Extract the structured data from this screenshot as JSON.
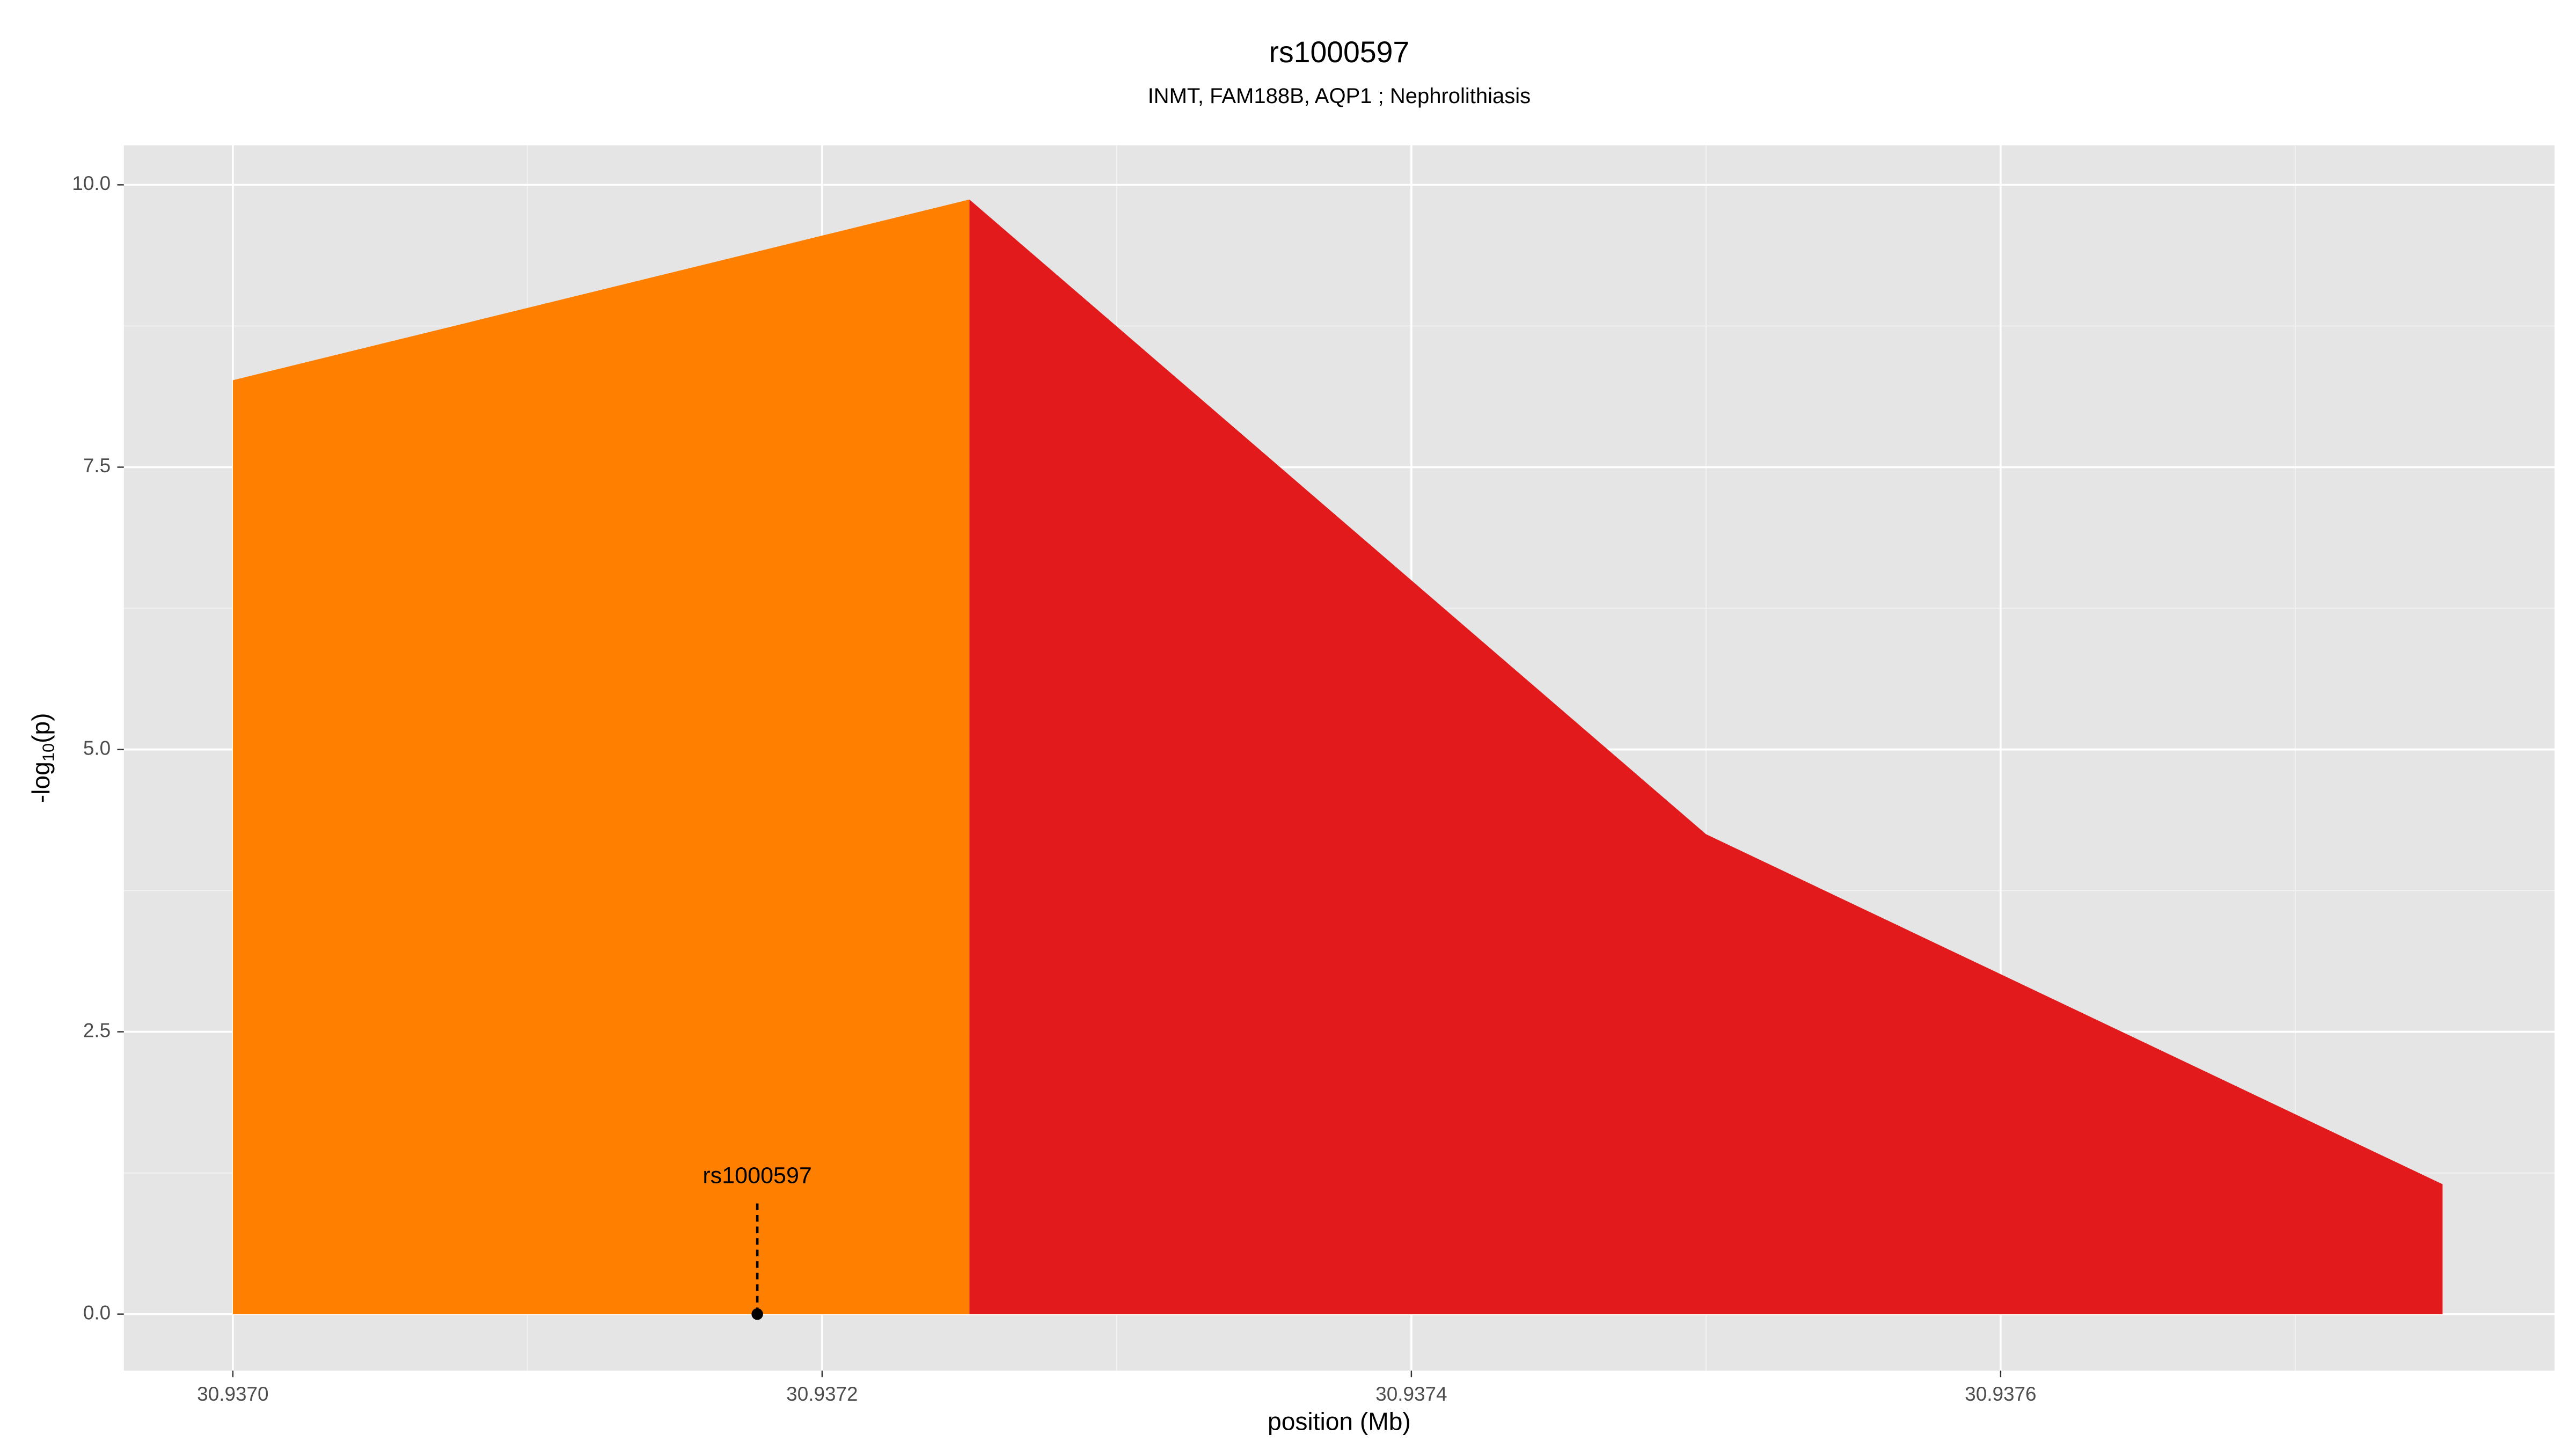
{
  "chart_data": {
    "type": "area",
    "title": "rs1000597",
    "subtitle": "INMT, FAM188B, AQP1 ; Nephrolithiasis",
    "x_label": "position (Mb)",
    "y_label": [
      "-log",
      "10",
      "(p)"
    ],
    "series": [
      {
        "color": "#ff7f00",
        "x": [
          30.937,
          30.93725
        ],
        "values": [
          8.27,
          9.87
        ]
      },
      {
        "color": "#e31a1c",
        "x": [
          30.93725,
          30.9375,
          30.93775
        ],
        "values": [
          9.87,
          4.25,
          1.15
        ]
      }
    ],
    "annotation": {
      "text": "rs1000597",
      "x": 30.937178,
      "y": 0
    },
    "xlim": [
      30.936963,
      30.937788
    ],
    "ylim": [
      -0.5,
      10.35
    ],
    "xticks": [
      {
        "value": 30.937,
        "label": "30.9370"
      },
      {
        "value": 30.9372,
        "label": "30.9372"
      },
      {
        "value": 30.9374,
        "label": "30.9374"
      },
      {
        "value": 30.9376,
        "label": "30.9376"
      }
    ],
    "yticks": [
      {
        "value": 0,
        "label": "0.0"
      },
      2.5,
      {
        "value": 5,
        "label": "5.0"
      },
      7.5,
      {
        "value": 10,
        "label": "10.0"
      }
    ],
    "grid": true,
    "minor_grid": true
  }
}
